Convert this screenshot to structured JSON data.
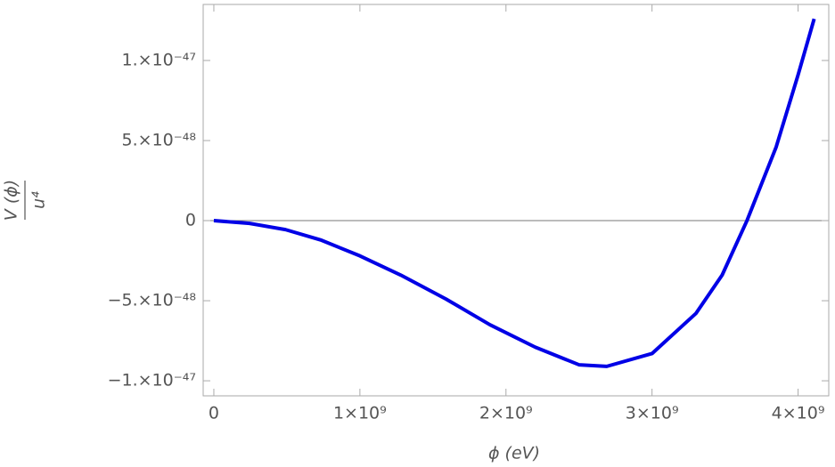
{
  "chart_data": {
    "type": "line",
    "x_label": "ϕ (eV)",
    "y_label_numerator": "V (ϕ)",
    "y_label_denominator": "u⁴",
    "x": [
      0,
      244000000,
      490000000,
      730000000,
      1000000000,
      1280000000,
      1590000000,
      1890000000,
      2200000000,
      2500000000,
      2690000000,
      3000000000,
      3300000000,
      3480000000,
      3650000000,
      3850000000,
      4000000000,
      4110000000
    ],
    "series": [
      {
        "color": "#0000e6",
        "values": [
          0,
          -1.7e-49,
          -5.6e-49,
          -1.2e-48,
          -2.2e-48,
          -3.4e-48,
          -4.9e-48,
          -6.5e-48,
          -7.9e-48,
          -9e-48,
          -9.1e-48,
          -8.3e-48,
          -5.8e-48,
          -3.4e-48,
          0,
          4.6e-48,
          9.1e-48,
          1.26e-47
        ]
      }
    ],
    "xlim": [
      -73000000,
      4210000000
    ],
    "ylim": [
      -1.094e-47,
      1.35e-47
    ],
    "xticks": [
      0,
      {
        "value": 1000000000,
        "label": "1×10⁹"
      },
      {
        "value": 2000000000,
        "label": "2×10⁹"
      },
      {
        "value": 3000000000,
        "label": "3×10⁹"
      },
      {
        "value": 4000000000,
        "label": "4×10⁹"
      }
    ],
    "yticks": [
      {
        "value": -1e-47,
        "label": "−1.×10⁻⁴⁷"
      },
      {
        "value": -5e-48,
        "label": "−5.×10⁻⁴⁸"
      },
      0,
      {
        "value": 5e-48,
        "label": "5.×10⁻⁴⁸"
      },
      {
        "value": 1e-47,
        "label": "1.×10⁻⁴⁷"
      }
    ]
  }
}
